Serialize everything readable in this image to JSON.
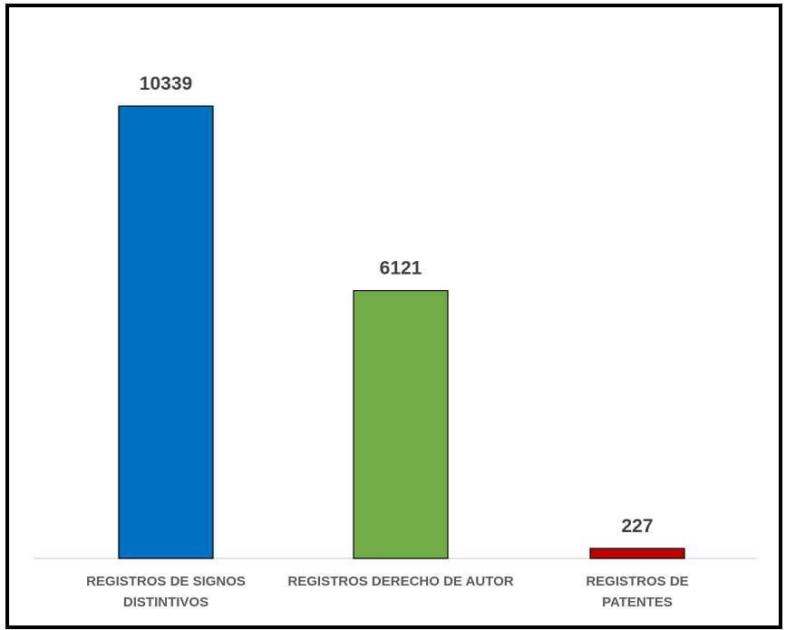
{
  "chart_data": {
    "type": "bar",
    "categories": [
      "REGISTROS DE SIGNOS DISTINTIVOS",
      "REGISTROS DERECHO DE AUTOR",
      "REGISTROS DE PATENTES"
    ],
    "values": [
      10339,
      6121,
      227
    ],
    "colors": [
      "#0070c0",
      "#70ad47",
      "#c00000"
    ]
  }
}
